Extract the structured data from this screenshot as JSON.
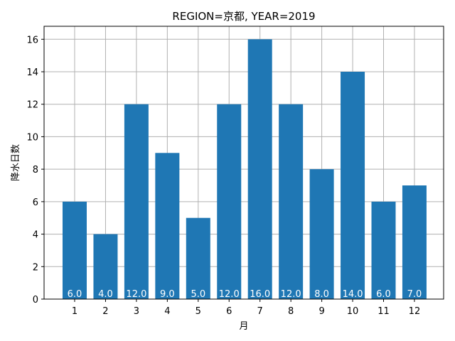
{
  "chart_data": {
    "type": "bar",
    "title": "REGION=京都, YEAR=2019",
    "xlabel": "月",
    "ylabel": "降水日数",
    "categories": [
      "1",
      "2",
      "3",
      "4",
      "5",
      "6",
      "7",
      "8",
      "9",
      "10",
      "11",
      "12"
    ],
    "values": [
      6,
      4,
      12,
      9,
      5,
      12,
      16,
      12,
      8,
      14,
      6,
      7
    ],
    "data_labels": [
      "6.0",
      "4.0",
      "12.0",
      "9.0",
      "5.0",
      "12.0",
      "16.0",
      "12.0",
      "8.0",
      "14.0",
      "6.0",
      "7.0"
    ],
    "yticks": [
      0,
      2,
      4,
      6,
      8,
      10,
      12,
      14,
      16
    ],
    "ylim": [
      0,
      16.8
    ],
    "grid": true,
    "bar_color": "#1f77b4",
    "grid_color": "#b0b0b0"
  }
}
